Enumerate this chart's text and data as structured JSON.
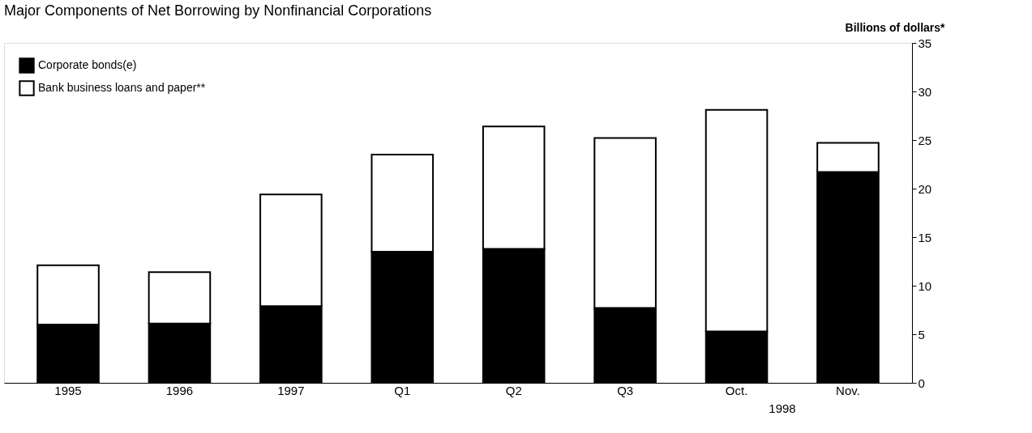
{
  "chart_data": {
    "type": "bar",
    "title": "Major Components of Net Borrowing by Nonfinancial Corporations",
    "ylabel": "Billions of dollars*",
    "stacked": true,
    "categories": [
      "1995",
      "1996",
      "1997",
      "Q1",
      "Q2",
      "Q3",
      "Oct.",
      "Nov."
    ],
    "series": [
      {
        "name": "Corporate bonds(e)",
        "color": "#000000",
        "values": [
          6.0,
          6.1,
          7.9,
          13.5,
          13.8,
          7.7,
          5.3,
          21.7
        ]
      },
      {
        "name": "Bank business loans and paper**",
        "color": "#ffffff",
        "values": [
          6.1,
          5.3,
          11.5,
          10.0,
          12.6,
          17.5,
          22.8,
          3.0
        ]
      }
    ],
    "ylim": [
      0,
      35
    ],
    "yticks": [
      0,
      5,
      10,
      15,
      20,
      25,
      30,
      35
    ],
    "grid": false,
    "legend": "top left",
    "annotations": [
      "1998"
    ]
  }
}
